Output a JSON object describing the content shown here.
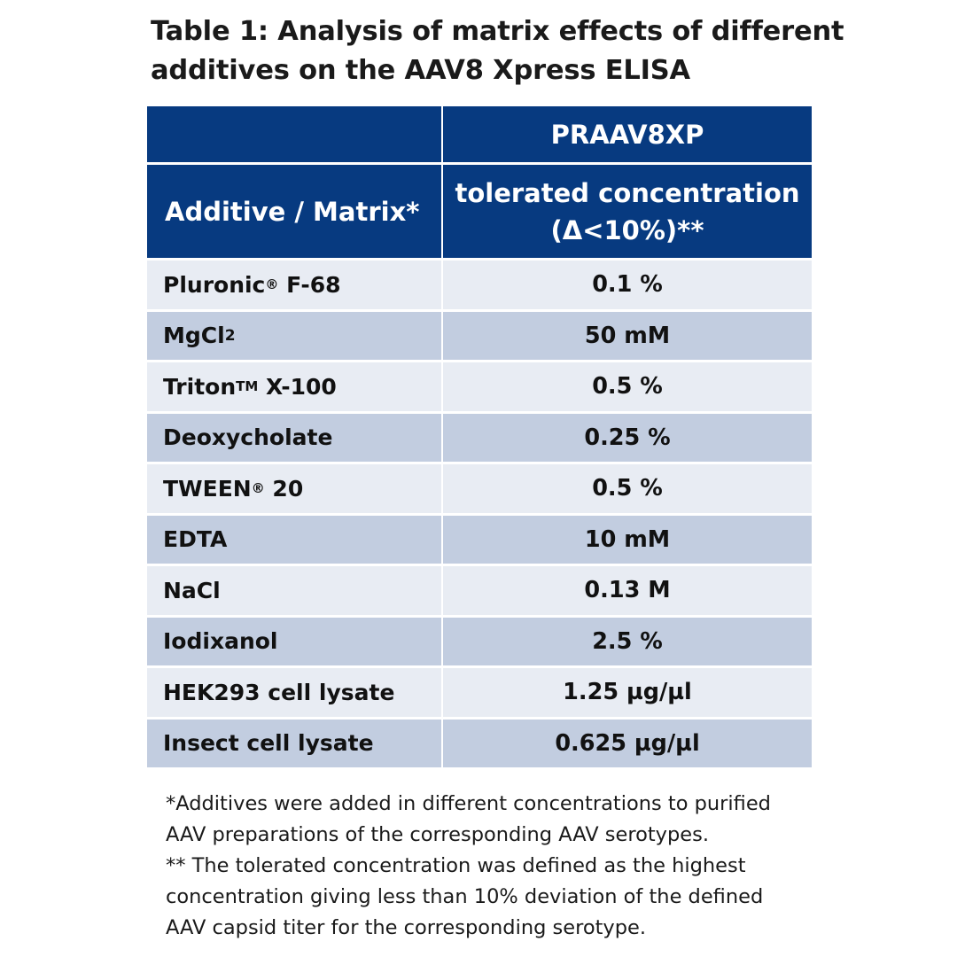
{
  "title": {
    "line1": "Table 1: Analysis of matrix effects of different",
    "line2": "additives on the AAV8 Xpress ELISA"
  },
  "table": {
    "header_product": "PRAAV8XP",
    "header_col1": "Additive / Matrix*",
    "header_col2_line1": "tolerated concentration",
    "header_col2_line2": "(Δ<10%)**",
    "rows": [
      {
        "name": "Pluronic",
        "sup": "®",
        "suffix": " F-68",
        "value": "0.1 %"
      },
      {
        "name": "MgCl",
        "sub": "2",
        "value": "50 mM"
      },
      {
        "name": "Triton",
        "sup": "TM",
        "suffix": " X-100",
        "value": "0.5 %"
      },
      {
        "name": "Deoxycholate",
        "value": "0.25 %"
      },
      {
        "name": "TWEEN",
        "sup": "®",
        "suffix": " 20",
        "value": "0.5 %"
      },
      {
        "name": "EDTA",
        "value": "10 mM"
      },
      {
        "name": "NaCl",
        "value": "0.13 M"
      },
      {
        "name": "Iodixanol",
        "value": "2.5 %"
      },
      {
        "name": "HEK293 cell lysate",
        "value": "1.25 µg/µl"
      },
      {
        "name": "Insect cell lysate",
        "value": "0.625 µg/µl"
      }
    ]
  },
  "footnotes": {
    "line1": "*Additives were added in different concentrations to purified",
    "line2": "AAV preparations of the corresponding AAV serotypes.",
    "line3": "** The tolerated concentration was defined as the highest",
    "line4": "concentration giving less than 10% deviation of the defined",
    "line5": "AAV capsid titer for the corresponding serotype."
  },
  "colors": {
    "header_bg": "#073a80",
    "row_light": "#e8ecf3",
    "row_dark": "#c2cde0"
  }
}
